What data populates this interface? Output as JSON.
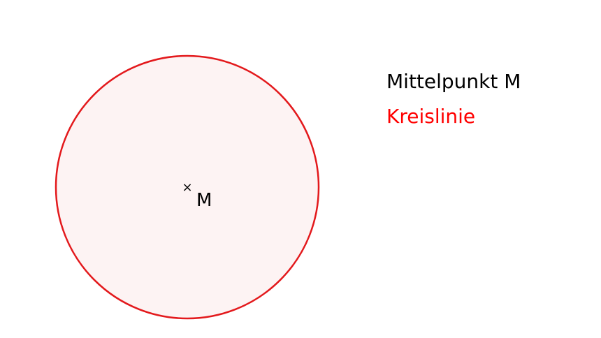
{
  "colors": {
    "circle_stroke": "#e3191c",
    "circle_fill": "#fdf3f3",
    "text": "#000000",
    "accent": "#ff0000"
  },
  "figure": {
    "center_marker": "×",
    "center_label": "M"
  },
  "legend": {
    "center_label": "Mittelpunkt M",
    "circle_label": "Kreislinie"
  }
}
